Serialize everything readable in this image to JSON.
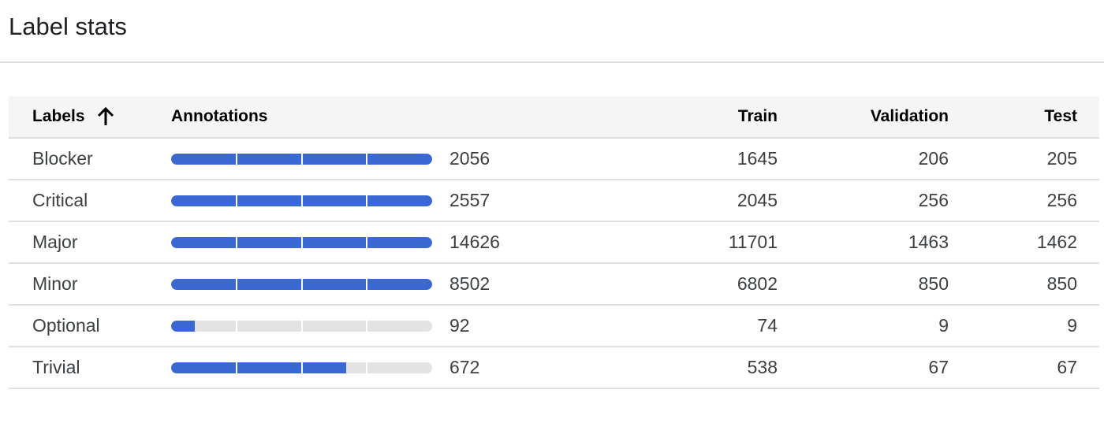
{
  "page": {
    "title": "Label stats"
  },
  "table": {
    "headers": {
      "labels": "Labels",
      "annotations": "Annotations",
      "train": "Train",
      "validation": "Validation",
      "test": "Test"
    },
    "sort_icon": "arrow-upward-icon",
    "colors": {
      "bar_fill": "#3a67d2",
      "bar_track": "#e3e3e3"
    },
    "rows": [
      {
        "label": "Blocker",
        "annotations": "2056",
        "bar_fill": 1.0,
        "train": "1645",
        "validation": "206",
        "test": "205"
      },
      {
        "label": "Critical",
        "annotations": "2557",
        "bar_fill": 1.0,
        "train": "2045",
        "validation": "256",
        "test": "256"
      },
      {
        "label": "Major",
        "annotations": "14626",
        "bar_fill": 1.0,
        "train": "11701",
        "validation": "1463",
        "test": "1462"
      },
      {
        "label": "Minor",
        "annotations": "8502",
        "bar_fill": 1.0,
        "train": "6802",
        "validation": "850",
        "test": "850"
      },
      {
        "label": "Optional",
        "annotations": "92",
        "bar_fill": 0.092,
        "train": "74",
        "validation": "9",
        "test": "9"
      },
      {
        "label": "Trivial",
        "annotations": "672",
        "bar_fill": 0.672,
        "train": "538",
        "validation": "67",
        "test": "67"
      }
    ]
  }
}
